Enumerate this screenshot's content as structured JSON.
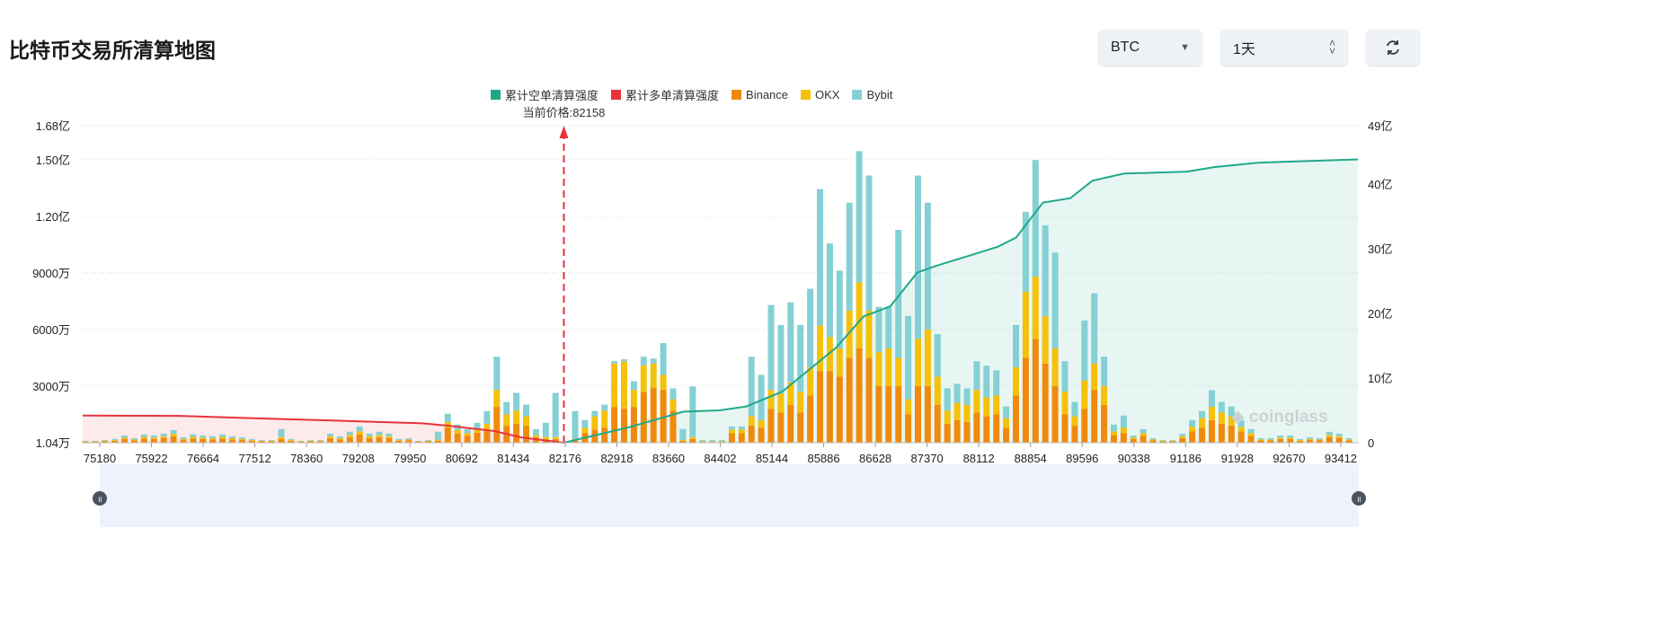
{
  "header": {
    "title": "比特币交易所清算地图",
    "coin": "BTC",
    "period": "1天"
  },
  "legend": [
    {
      "label": "累计空单清算强度",
      "color": "#1fa88a"
    },
    {
      "label": "累计多单清算强度",
      "color": "#e8323c"
    },
    {
      "label": "Binance",
      "color": "#f08a0c"
    },
    {
      "label": "OKX",
      "color": "#f5c10a"
    },
    {
      "label": "Bybit",
      "color": "#85d0d4"
    }
  ],
  "current_price_label": "当前价格:82158",
  "watermark": "coinglass",
  "chart_data": {
    "type": "bar",
    "title": "比特币交易所清算地图",
    "current_price": 82158,
    "left_axis": {
      "unit": "万",
      "range": [
        1.04,
        16800
      ],
      "ticks": [
        {
          "v": 1.04,
          "label": "1.04万"
        },
        {
          "v": 3000,
          "label": "3000万"
        },
        {
          "v": 6000,
          "label": "6000万"
        },
        {
          "v": 9000,
          "label": "9000万"
        },
        {
          "v": 12000,
          "label": "1.20亿"
        },
        {
          "v": 15000,
          "label": "1.50亿"
        },
        {
          "v": 16800,
          "label": "1.68亿"
        }
      ]
    },
    "right_axis": {
      "unit": "亿",
      "range": [
        0,
        49
      ],
      "ticks": [
        {
          "v": 0,
          "label": "0"
        },
        {
          "v": 10,
          "label": "10亿"
        },
        {
          "v": 20,
          "label": "20亿"
        },
        {
          "v": 30,
          "label": "30亿"
        },
        {
          "v": 40,
          "label": "40亿"
        },
        {
          "v": 49,
          "label": "49亿"
        }
      ]
    },
    "x_ticks": [
      "75180",
      "75922",
      "76664",
      "77512",
      "78360",
      "79208",
      "79950",
      "80692",
      "81434",
      "82176",
      "82918",
      "83660",
      "84402",
      "85144",
      "85886",
      "86628",
      "87370",
      "88112",
      "88854",
      "89596",
      "90338",
      "91186",
      "91928",
      "92670",
      "93412"
    ],
    "bar_unit": "万",
    "series": [
      {
        "name": "Binance",
        "values": [
          50,
          50,
          70,
          100,
          190,
          120,
          220,
          190,
          240,
          340,
          140,
          220,
          190,
          170,
          220,
          170,
          140,
          100,
          70,
          70,
          200,
          100,
          50,
          70,
          70,
          240,
          170,
          290,
          430,
          240,
          290,
          240,
          100,
          120,
          50,
          70,
          100,
          800,
          480,
          360,
          530,
          700,
          1900,
          900,
          1000,
          900,
          300,
          200,
          200,
          0,
          100,
          500,
          700,
          800,
          1900,
          1800,
          1900,
          2700,
          2900,
          2800,
          1700,
          100,
          200,
          40,
          40,
          40,
          500,
          500,
          900,
          800,
          1800,
          1600,
          2000,
          1600,
          2500,
          3800,
          3800,
          3500,
          4500,
          5000,
          4500,
          3000,
          3000,
          3000,
          1500,
          3000,
          3000,
          2000,
          1000,
          1200,
          1100,
          1600,
          1400,
          1500,
          800,
          2500,
          4500,
          5500,
          4200,
          3000,
          1500,
          900,
          1800,
          2800,
          2000,
          400,
          500,
          200,
          360,
          120,
          70,
          70,
          240,
          600,
          800,
          1200,
          1000,
          900,
          600,
          360,
          120,
          120,
          190,
          190,
          100,
          140,
          120,
          290,
          240,
          120
        ]
      },
      {
        "name": "OKX",
        "values": [
          20,
          20,
          30,
          40,
          80,
          50,
          90,
          80,
          100,
          130,
          60,
          90,
          80,
          70,
          90,
          70,
          60,
          40,
          30,
          30,
          100,
          40,
          20,
          30,
          30,
          100,
          70,
          120,
          170,
          100,
          120,
          100,
          40,
          50,
          20,
          30,
          60,
          300,
          190,
          140,
          210,
          300,
          900,
          600,
          700,
          500,
          100,
          100,
          100,
          0,
          100,
          300,
          700,
          900,
          2300,
          2500,
          900,
          1400,
          1300,
          800,
          600,
          50,
          100,
          30,
          30,
          30,
          200,
          200,
          500,
          400,
          1000,
          1000,
          1200,
          1100,
          1500,
          2400,
          1800,
          1500,
          2500,
          3500,
          2500,
          1800,
          2000,
          1500,
          800,
          2500,
          3000,
          1500,
          700,
          900,
          900,
          1200,
          1000,
          1000,
          500,
          1500,
          3500,
          3300,
          2500,
          2000,
          1200,
          500,
          1500,
          1400,
          1000,
          200,
          300,
          80,
          140,
          50,
          30,
          30,
          100,
          240,
          500,
          700,
          600,
          500,
          240,
          140,
          50,
          50,
          80,
          80,
          40,
          60,
          50,
          120,
          100,
          50
        ]
      },
      {
        "name": "Bybit",
        "values": [
          30,
          30,
          40,
          60,
          110,
          70,
          130,
          110,
          140,
          200,
          90,
          130,
          110,
          100,
          130,
          100,
          90,
          60,
          40,
          40,
          420,
          60,
          30,
          40,
          40,
          140,
          100,
          170,
          260,
          140,
          170,
          140,
          60,
          70,
          30,
          40,
          420,
          440,
          290,
          220,
          320,
          680,
          1760,
          660,
          940,
          620,
          320,
          760,
          2340,
          0,
          1480,
          400,
          280,
          320,
          120,
          120,
          460,
          460,
          260,
          1680,
          580,
          570,
          2680,
          70,
          70,
          70,
          160,
          160,
          3160,
          2400,
          4500,
          3640,
          4240,
          3540,
          4160,
          7240,
          4960,
          4120,
          5720,
          6950,
          7160,
          2400,
          2200,
          6780,
          4420,
          8660,
          6720,
          2260,
          1180,
          1020,
          880,
          1520,
          1680,
          1340,
          620,
          2240,
          4240,
          6180,
          4820,
          5080,
          1620,
          760,
          3180,
          3720,
          1560,
          360,
          640,
          100,
          220,
          70,
          40,
          40,
          140,
          360,
          380,
          880,
          560,
          520,
          360,
          220,
          70,
          70,
          110,
          110,
          60,
          90,
          70,
          170,
          140,
          70
        ]
      },
      {
        "name": "累计多单清算强度",
        "unit": "亿",
        "points": [
          [
            74935,
            4.2
          ],
          [
            76330,
            4.15
          ],
          [
            77758,
            3.7
          ],
          [
            79230,
            3.3
          ],
          [
            80128,
            3.0
          ],
          [
            80521,
            2.6
          ],
          [
            81159,
            1.8
          ],
          [
            81553,
            0.8
          ],
          [
            82158,
            0
          ]
        ]
      },
      {
        "name": "累计空单清算强度",
        "unit": "亿",
        "points": [
          [
            82158,
            0
          ],
          [
            83096,
            2.4
          ],
          [
            83875,
            4.8
          ],
          [
            84387,
            5.0
          ],
          [
            84773,
            5.6
          ],
          [
            85292,
            7.9
          ],
          [
            85678,
            11.3
          ],
          [
            86064,
            14.7
          ],
          [
            86457,
            19.5
          ],
          [
            86843,
            21.1
          ],
          [
            87229,
            26.3
          ],
          [
            87489,
            27.3
          ],
          [
            88001,
            29.0
          ],
          [
            88387,
            30.3
          ],
          [
            88646,
            31.7
          ],
          [
            89032,
            37.1
          ],
          [
            89425,
            37.8
          ],
          [
            89744,
            40.5
          ],
          [
            90197,
            41.6
          ],
          [
            91208,
            41.9
          ],
          [
            91594,
            42.6
          ],
          [
            92240,
            43.3
          ],
          [
            93657,
            43.8
          ]
        ]
      }
    ]
  }
}
